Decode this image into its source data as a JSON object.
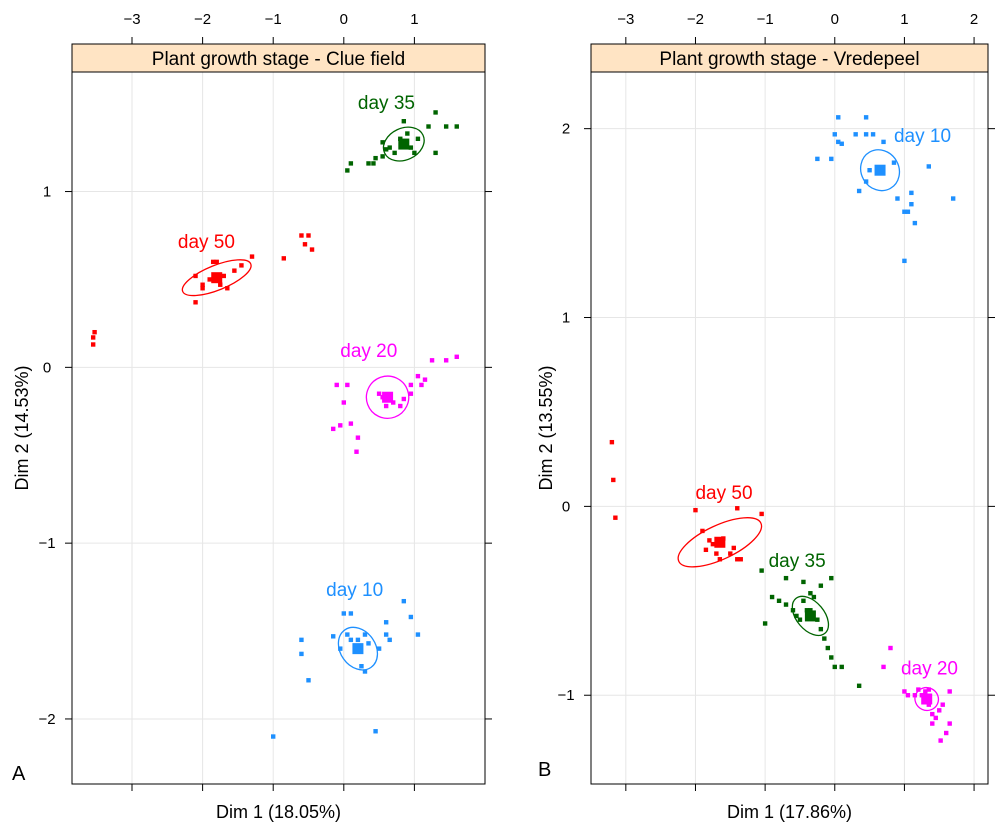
{
  "chart_data": [
    {
      "type": "scatter",
      "panel_label": "A",
      "strip_title": "Plant growth stage - Clue field",
      "xlabel": "Dim 1 (18.05%)",
      "ylabel": "Dim 2 (14.53%)",
      "xlim": [
        -3.85,
        2.0
      ],
      "ylim": [
        -2.37,
        1.68
      ],
      "x_ticks": [
        -3,
        -2,
        -1,
        0,
        1
      ],
      "y_ticks": [
        -2,
        -1,
        0,
        1
      ],
      "grid": true,
      "strip_color": "#ffe4c4",
      "series": [
        {
          "name": "day 35",
          "color": "#006400",
          "label_pos": [
            0.2,
            1.47
          ],
          "centroid": [
            0.85,
            1.27
          ],
          "ellipse": {
            "rx": 0.3,
            "ry": 0.09,
            "angle_deg": 25
          },
          "points": [
            [
              0.05,
              1.12
            ],
            [
              0.1,
              1.16
            ],
            [
              0.35,
              1.16
            ],
            [
              0.42,
              1.16
            ],
            [
              0.45,
              1.19
            ],
            [
              0.55,
              1.2
            ],
            [
              0.6,
              1.24
            ],
            [
              0.65,
              1.25
            ],
            [
              0.72,
              1.22
            ],
            [
              0.8,
              1.3
            ],
            [
              0.9,
              1.33
            ],
            [
              0.95,
              1.25
            ],
            [
              1.0,
              1.22
            ],
            [
              1.05,
              1.3
            ],
            [
              1.2,
              1.37
            ],
            [
              1.3,
              1.45
            ],
            [
              1.45,
              1.37
            ],
            [
              1.6,
              1.37
            ],
            [
              1.3,
              1.22
            ],
            [
              0.85,
              1.4
            ],
            [
              0.55,
              1.28
            ]
          ]
        },
        {
          "name": "day 50",
          "color": "#ff0000",
          "label_pos": [
            -2.35,
            0.68
          ],
          "centroid": [
            -1.8,
            0.51
          ],
          "ellipse": {
            "rx": 0.52,
            "ry": 0.07,
            "angle_deg": 22
          },
          "points": [
            [
              -3.55,
              0.13
            ],
            [
              -3.55,
              0.17
            ],
            [
              -3.53,
              0.2
            ],
            [
              -2.1,
              0.37
            ],
            [
              -2.1,
              0.52
            ],
            [
              -2.0,
              0.45
            ],
            [
              -1.9,
              0.5
            ],
            [
              -1.85,
              0.6
            ],
            [
              -1.8,
              0.6
            ],
            [
              -1.75,
              0.47
            ],
            [
              -1.7,
              0.52
            ],
            [
              -1.65,
              0.45
            ],
            [
              -1.55,
              0.55
            ],
            [
              -1.45,
              0.58
            ],
            [
              -1.3,
              0.63
            ],
            [
              -0.85,
              0.62
            ],
            [
              -0.6,
              0.75
            ],
            [
              -0.55,
              0.7
            ],
            [
              -0.5,
              0.75
            ],
            [
              -0.45,
              0.67
            ],
            [
              -2.0,
              0.47
            ]
          ]
        },
        {
          "name": "day 20",
          "color": "#ff00ff",
          "label_pos": [
            -0.05,
            0.06
          ],
          "centroid": [
            0.62,
            -0.17
          ],
          "ellipse": {
            "rx": 0.3,
            "ry": 0.12,
            "angle_deg": 20
          },
          "points": [
            [
              -0.1,
              -0.1
            ],
            [
              0.05,
              -0.1
            ],
            [
              0.0,
              -0.2
            ],
            [
              -0.15,
              -0.35
            ],
            [
              -0.05,
              -0.33
            ],
            [
              0.1,
              -0.32
            ],
            [
              0.2,
              -0.4
            ],
            [
              0.18,
              -0.48
            ],
            [
              0.5,
              -0.15
            ],
            [
              0.6,
              -0.22
            ],
            [
              0.7,
              -0.2
            ],
            [
              0.8,
              -0.22
            ],
            [
              0.85,
              -0.18
            ],
            [
              0.95,
              -0.15
            ],
            [
              0.95,
              -0.1
            ],
            [
              1.05,
              -0.05
            ],
            [
              1.1,
              -0.1
            ],
            [
              1.15,
              -0.07
            ],
            [
              1.25,
              0.04
            ],
            [
              1.45,
              0.04
            ],
            [
              1.6,
              0.06
            ],
            [
              0.55,
              -0.17
            ]
          ]
        },
        {
          "name": "day 10",
          "color": "#1e90ff",
          "label_pos": [
            -0.25,
            -1.3
          ],
          "centroid": [
            0.2,
            -1.6
          ],
          "ellipse": {
            "rx": 0.25,
            "ry": 0.13,
            "angle_deg": 35
          },
          "points": [
            [
              -0.6,
              -1.55
            ],
            [
              -0.6,
              -1.63
            ],
            [
              -0.5,
              -1.78
            ],
            [
              -0.15,
              -1.53
            ],
            [
              -0.05,
              -1.6
            ],
            [
              0.0,
              -1.4
            ],
            [
              0.05,
              -1.52
            ],
            [
              0.1,
              -1.55
            ],
            [
              0.2,
              -1.55
            ],
            [
              0.3,
              -1.52
            ],
            [
              0.35,
              -1.57
            ],
            [
              0.25,
              -1.7
            ],
            [
              0.3,
              -1.73
            ],
            [
              0.5,
              -1.6
            ],
            [
              0.6,
              -1.52
            ],
            [
              0.6,
              -1.45
            ],
            [
              0.65,
              -1.55
            ],
            [
              0.85,
              -1.33
            ],
            [
              0.95,
              -1.42
            ],
            [
              1.05,
              -1.52
            ],
            [
              0.45,
              -2.07
            ],
            [
              -1.0,
              -2.1
            ],
            [
              0.1,
              -1.4
            ]
          ]
        }
      ]
    },
    {
      "type": "scatter",
      "panel_label": "B",
      "strip_title": "Plant growth stage - Vredepeel",
      "xlabel": "Dim 1 (17.86%)",
      "ylabel": "Dim 2 (13.55%)",
      "xlim": [
        -3.5,
        2.2
      ],
      "ylim": [
        -1.47,
        2.3
      ],
      "x_ticks": [
        -3,
        -2,
        -1,
        0,
        1,
        2
      ],
      "y_ticks": [
        -1,
        0,
        1,
        2
      ],
      "grid": true,
      "strip_color": "#ffe4c4",
      "series": [
        {
          "name": "day 10",
          "color": "#1e90ff",
          "label_pos": [
            0.85,
            1.93
          ],
          "centroid": [
            0.65,
            1.78
          ],
          "ellipse": {
            "rx": 0.3,
            "ry": 0.1,
            "angle_deg": -60
          },
          "points": [
            [
              -0.25,
              1.84
            ],
            [
              -0.05,
              1.84
            ],
            [
              0.0,
              1.97
            ],
            [
              0.05,
              2.06
            ],
            [
              0.05,
              1.93
            ],
            [
              0.1,
              1.92
            ],
            [
              0.3,
              1.97
            ],
            [
              0.45,
              1.97
            ],
            [
              0.45,
              2.06
            ],
            [
              0.55,
              1.97
            ],
            [
              0.7,
              1.93
            ],
            [
              0.35,
              1.67
            ],
            [
              0.45,
              1.72
            ],
            [
              0.5,
              1.78
            ],
            [
              0.85,
              1.82
            ],
            [
              0.9,
              1.63
            ],
            [
              1.0,
              1.56
            ],
            [
              1.05,
              1.56
            ],
            [
              1.1,
              1.6
            ],
            [
              1.1,
              1.66
            ],
            [
              1.15,
              1.5
            ],
            [
              1.35,
              1.8
            ],
            [
              1.7,
              1.63
            ],
            [
              1.0,
              1.3
            ]
          ]
        },
        {
          "name": "day 50",
          "color": "#ff0000",
          "label_pos": [
            -2.0,
            0.04
          ],
          "centroid": [
            -1.65,
            -0.19
          ],
          "ellipse": {
            "rx": 0.65,
            "ry": 0.09,
            "angle_deg": 25
          },
          "points": [
            [
              -3.2,
              0.34
            ],
            [
              -3.18,
              0.14
            ],
            [
              -3.15,
              -0.06
            ],
            [
              -2.0,
              -0.02
            ],
            [
              -1.9,
              -0.13
            ],
            [
              -1.8,
              -0.18
            ],
            [
              -1.75,
              -0.2
            ],
            [
              -1.7,
              -0.25
            ],
            [
              -1.6,
              -0.17
            ],
            [
              -1.5,
              -0.25
            ],
            [
              -1.45,
              -0.22
            ],
            [
              -1.4,
              -0.28
            ],
            [
              -1.35,
              -0.28
            ],
            [
              -1.4,
              -0.01
            ],
            [
              -1.05,
              -0.04
            ],
            [
              -1.85,
              -0.23
            ],
            [
              -1.65,
              -0.28
            ]
          ]
        },
        {
          "name": "day 35",
          "color": "#006400",
          "label_pos": [
            -0.95,
            -0.32
          ],
          "centroid": [
            -0.35,
            -0.58
          ],
          "ellipse": {
            "rx": 0.2,
            "ry": 0.12,
            "angle_deg": 40
          },
          "points": [
            [
              -1.0,
              -0.62
            ],
            [
              -0.9,
              -0.48
            ],
            [
              -0.8,
              -0.5
            ],
            [
              -0.7,
              -0.52
            ],
            [
              -0.6,
              -0.55
            ],
            [
              -0.55,
              -0.58
            ],
            [
              -0.5,
              -0.6
            ],
            [
              -0.45,
              -0.5
            ],
            [
              -0.4,
              -0.55
            ],
            [
              -0.35,
              -0.55
            ],
            [
              -0.3,
              -0.48
            ],
            [
              -0.25,
              -0.6
            ],
            [
              -0.2,
              -0.65
            ],
            [
              -0.15,
              -0.7
            ],
            [
              -0.1,
              -0.75
            ],
            [
              -0.05,
              -0.8
            ],
            [
              0.0,
              -0.85
            ],
            [
              0.1,
              -0.85
            ],
            [
              0.35,
              -0.95
            ],
            [
              -0.7,
              -0.38
            ],
            [
              -0.45,
              -0.4
            ],
            [
              -0.2,
              -0.42
            ],
            [
              -0.05,
              -0.38
            ],
            [
              -1.05,
              -0.34
            ],
            [
              -0.35,
              -0.46
            ]
          ]
        },
        {
          "name": "day 20",
          "color": "#ff00ff",
          "label_pos": [
            0.95,
            -0.89
          ],
          "centroid": [
            1.32,
            -1.02
          ],
          "ellipse": {
            "rx": 0.17,
            "ry": 0.06,
            "angle_deg": -25
          },
          "points": [
            [
              0.7,
              -0.85
            ],
            [
              0.8,
              -0.75
            ],
            [
              1.0,
              -0.98
            ],
            [
              1.05,
              -1.0
            ],
            [
              1.15,
              -1.0
            ],
            [
              1.2,
              -0.97
            ],
            [
              1.25,
              -1.0
            ],
            [
              1.3,
              -0.98
            ],
            [
              1.35,
              -1.05
            ],
            [
              1.4,
              -1.1
            ],
            [
              1.45,
              -1.12
            ],
            [
              1.5,
              -1.08
            ],
            [
              1.55,
              -1.05
            ],
            [
              1.65,
              -0.98
            ],
            [
              1.65,
              -1.15
            ],
            [
              1.6,
              -1.2
            ],
            [
              1.52,
              -1.24
            ],
            [
              1.4,
              -1.15
            ],
            [
              1.35,
              -0.97
            ]
          ]
        }
      ]
    }
  ]
}
